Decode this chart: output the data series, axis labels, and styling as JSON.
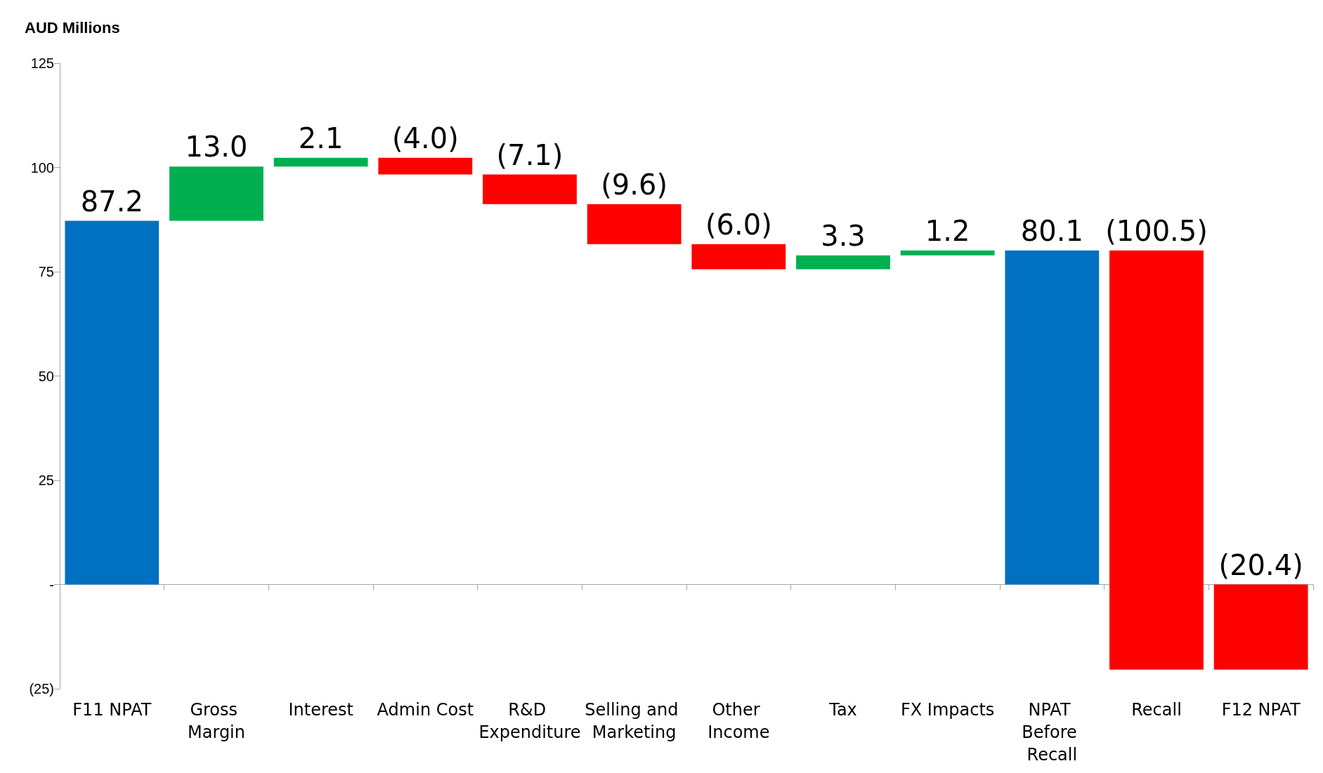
{
  "chart_data": {
    "type": "bar",
    "ylabel": "AUD Millions",
    "categories": [
      "F11 NPAT",
      "Gross Margin",
      "Interest",
      "Admin Cost",
      "R&D Expenditure",
      "Selling and Marketing",
      "Other Income",
      "Tax",
      "FX Impacts",
      "NPAT Before Recall",
      "Recall",
      "F12 NPAT"
    ],
    "values": [
      87.2,
      13.0,
      2.1,
      -4.0,
      -7.1,
      -9.6,
      -6.0,
      3.3,
      1.2,
      80.1,
      -100.5,
      -20.4
    ],
    "base": [
      0,
      87.2,
      100.2,
      102.3,
      98.3,
      91.2,
      81.6,
      75.6,
      78.9,
      0,
      80.1,
      0
    ],
    "colors": [
      "#0070c0",
      "#00b050",
      "#00b050",
      "#ff0000",
      "#ff0000",
      "#ff0000",
      "#ff0000",
      "#00b050",
      "#00b050",
      "#0070c0",
      "#ff0000",
      "#ff0000"
    ],
    "value_labels": [
      "87.2",
      "13.0",
      "2.1",
      "(4.0)",
      "(7.1)",
      "(9.6)",
      "(6.0)",
      "3.3",
      "1.2",
      "80.1",
      "(100.5)",
      "(20.4)"
    ],
    "ylim": [
      -25,
      125
    ],
    "yticks": [
      {
        "value": -25,
        "label": "(25)"
      },
      {
        "value": 0,
        "label": "-"
      },
      25,
      50,
      75,
      100,
      125
    ]
  }
}
